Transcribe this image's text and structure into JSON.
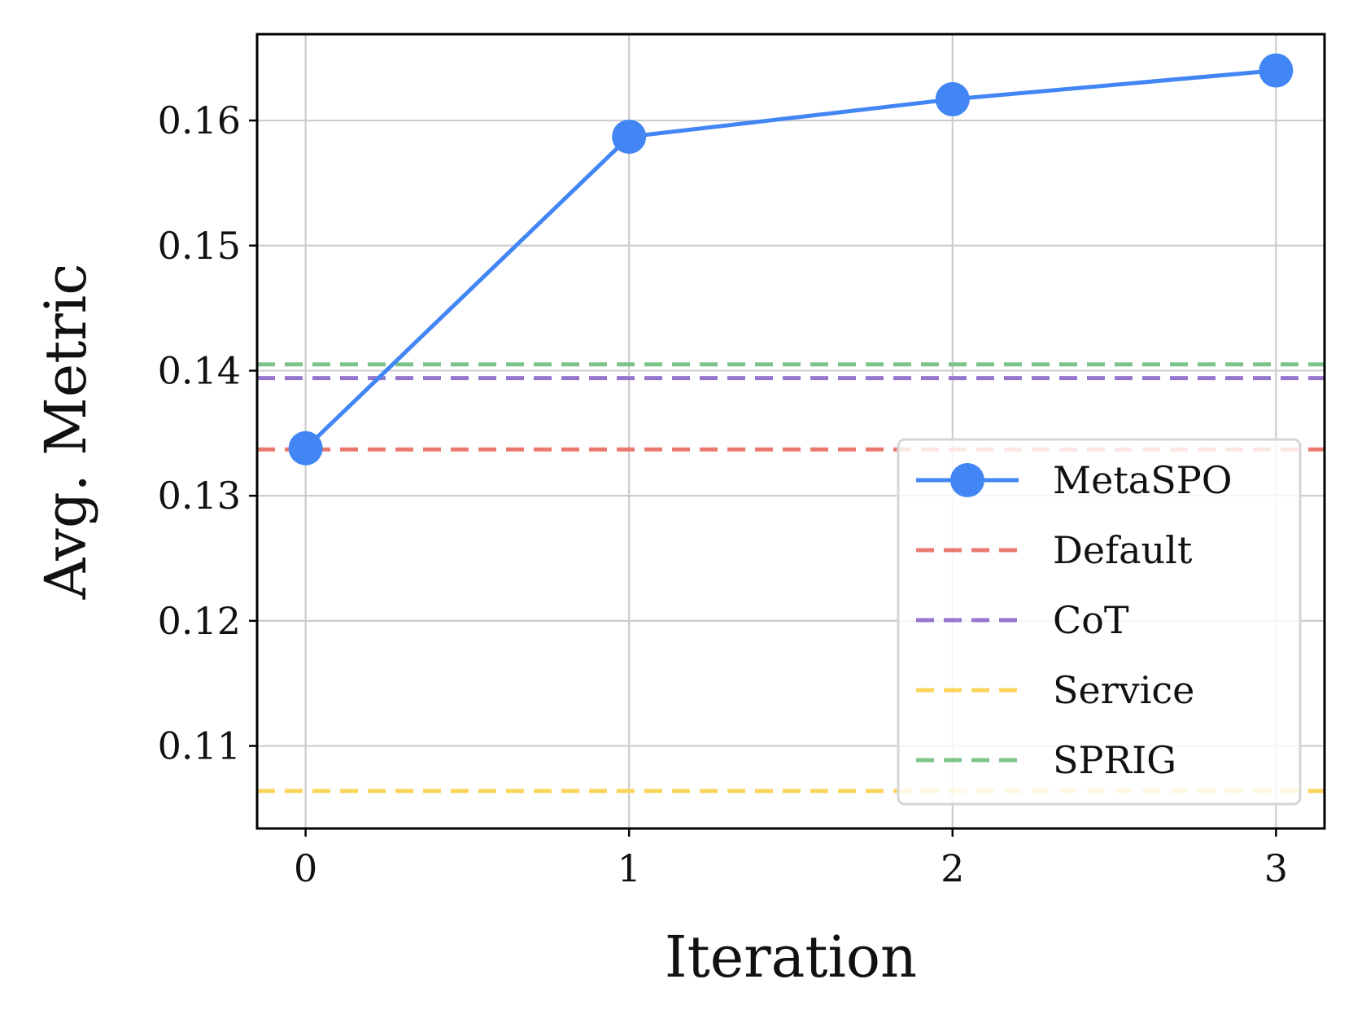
{
  "chart_data": {
    "type": "line",
    "title": "",
    "xlabel": "Iteration",
    "ylabel": "Avg. Metric",
    "x": [
      0,
      1,
      2,
      3
    ],
    "xlim": [
      -0.15,
      3.15
    ],
    "ylim": [
      0.1034,
      0.1669
    ],
    "xticks": [
      0,
      1,
      2,
      3
    ],
    "xtick_labels": [
      "0",
      "1",
      "2",
      "3"
    ],
    "yticks": [
      0.11,
      0.12,
      0.13,
      0.14,
      0.15,
      0.16
    ],
    "ytick_labels": [
      "0.11",
      "0.12",
      "0.13",
      "0.14",
      "0.15",
      "0.16"
    ],
    "grid": true,
    "legend_position": "bottom-right",
    "series": [
      {
        "name": "MetaSPO",
        "style": "solid-marker",
        "color": "#4285F4",
        "values": [
          0.1338,
          0.1587,
          0.1617,
          0.164
        ]
      },
      {
        "name": "Default",
        "style": "dashed",
        "color": "#EA796F",
        "value": 0.1337
      },
      {
        "name": "CoT",
        "style": "dashed",
        "color": "#9575CD",
        "value": 0.1394
      },
      {
        "name": "Service",
        "style": "dashed",
        "color": "#FBD459",
        "value": 0.1064
      },
      {
        "name": "SPRIG",
        "style": "dashed",
        "color": "#7CC48A",
        "value": 0.1405
      }
    ]
  }
}
